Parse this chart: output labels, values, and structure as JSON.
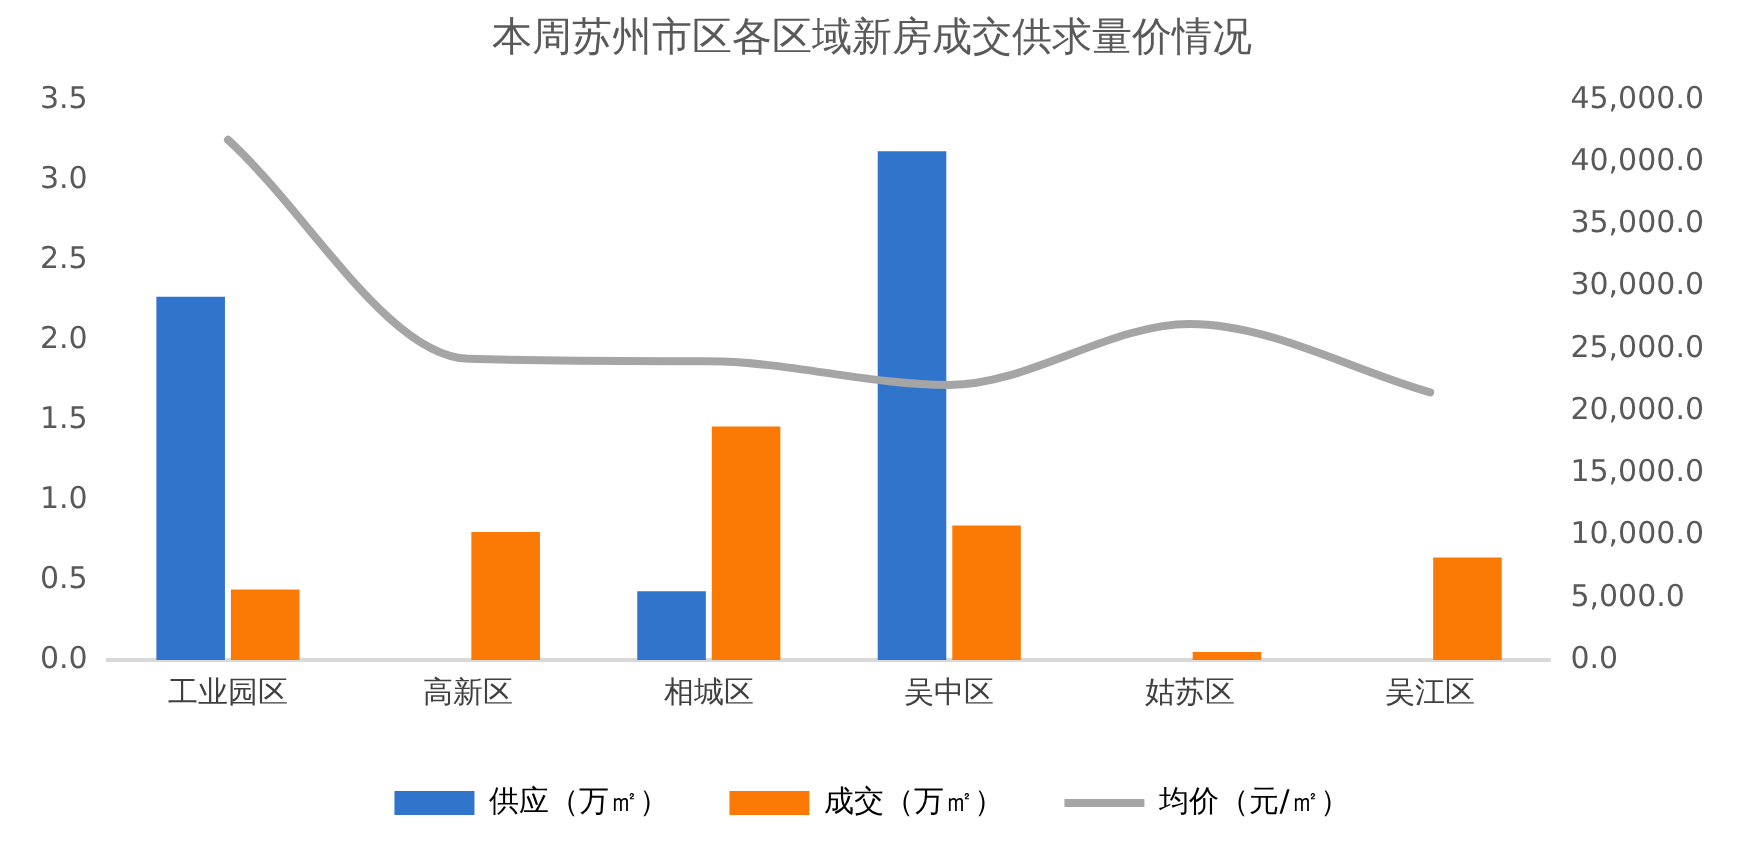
{
  "chart_data": {
    "type": "bar",
    "title": "本周苏州市区各区域新房成交供求量价情况",
    "categories": [
      "工业园区",
      "高新区",
      "相城区",
      "吴中区",
      "姑苏区",
      "吴江区"
    ],
    "series": [
      {
        "name": "供应（万㎡）",
        "color": "#3174cc",
        "values": [
          2.27,
          0,
          0.43,
          3.18,
          0,
          0
        ]
      },
      {
        "name": "成交（万㎡）",
        "color": "#fb7a06",
        "values": [
          0.44,
          0.8,
          1.46,
          0.84,
          0.05,
          0.64
        ]
      },
      {
        "name": "均价（元/㎡）",
        "type": "line",
        "axis": "y2",
        "color": "#a5a5a5",
        "values": [
          41800,
          24200,
          24000,
          22100,
          27000,
          21500
        ]
      }
    ],
    "ylim": [
      0,
      3.5
    ],
    "yticks": [
      {
        "value": 0,
        "label": "0.0"
      },
      {
        "value": 0.5,
        "label": "0.5"
      },
      {
        "value": 1,
        "label": "1.0"
      },
      {
        "value": 1.5,
        "label": "1.5"
      },
      {
        "value": 2,
        "label": "2.0"
      },
      {
        "value": 2.5,
        "label": "2.5"
      },
      {
        "value": 3,
        "label": "3.0"
      },
      {
        "value": 3.5,
        "label": "3.5"
      }
    ],
    "y2lim": [
      0,
      45000
    ],
    "y2ticks": [
      {
        "value": 0,
        "label": "0.0"
      },
      {
        "value": 5000,
        "label": "5,000.0"
      },
      {
        "value": 10000,
        "label": "10,000.0"
      },
      {
        "value": 15000,
        "label": "15,000.0"
      },
      {
        "value": 20000,
        "label": "20,000.0"
      },
      {
        "value": 25000,
        "label": "25,000.0"
      },
      {
        "value": 30000,
        "label": "30,000.0"
      },
      {
        "value": 35000,
        "label": "35,000.0"
      },
      {
        "value": 40000,
        "label": "40,000.0"
      },
      {
        "value": 45000,
        "label": "45,000.0"
      }
    ],
    "grid": false,
    "legend": "bottom",
    "marker": "none"
  }
}
